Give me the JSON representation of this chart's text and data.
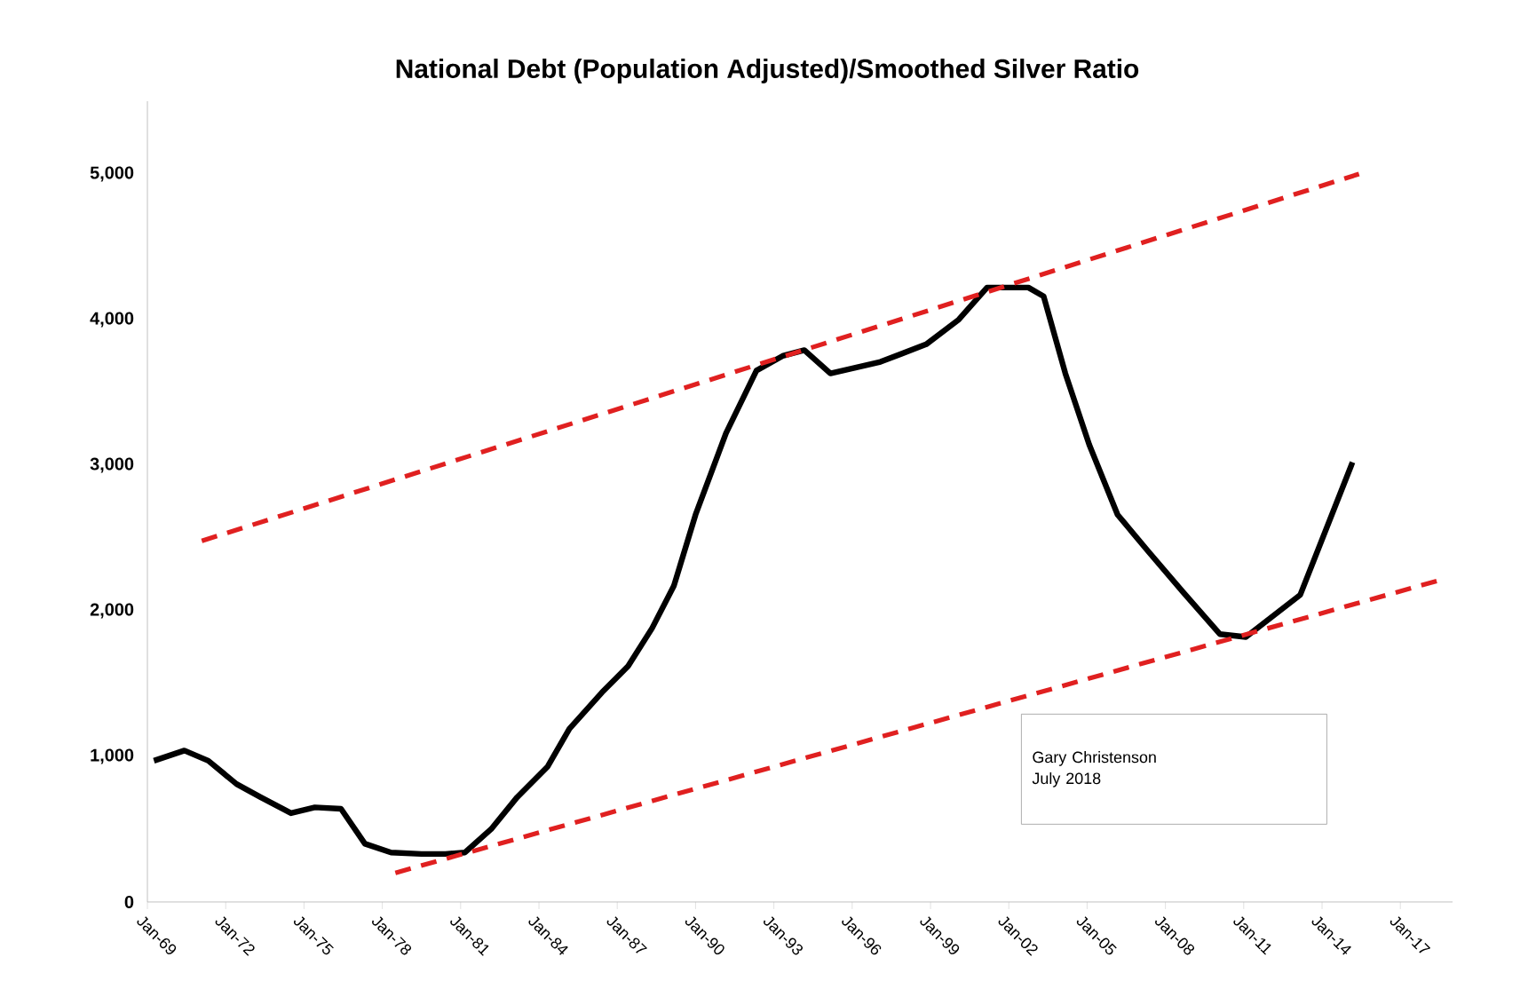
{
  "chart_data": {
    "type": "line",
    "title": "National Debt (Population Adjusted)/Smoothed Silver Ratio",
    "xlim": [
      "1969-01",
      "2019-01"
    ],
    "ylim": [
      0,
      5500
    ],
    "xticks": [
      {
        "value": "1969-01",
        "label": "Jan-69"
      },
      {
        "value": "1972-01",
        "label": "Jan-72"
      },
      {
        "value": "1975-01",
        "label": "Jan-75"
      },
      {
        "value": "1978-01",
        "label": "Jan-78"
      },
      {
        "value": "1981-01",
        "label": "Jan-81"
      },
      {
        "value": "1984-01",
        "label": "Jan-84"
      },
      {
        "value": "1987-01",
        "label": "Jan-87"
      },
      {
        "value": "1990-01",
        "label": "Jan-90"
      },
      {
        "value": "1993-01",
        "label": "Jan-93"
      },
      {
        "value": "1996-01",
        "label": "Jan-96"
      },
      {
        "value": "1999-01",
        "label": "Jan-99"
      },
      {
        "value": "2002-01",
        "label": "Jan-02"
      },
      {
        "value": "2005-01",
        "label": "Jan-05"
      },
      {
        "value": "2008-01",
        "label": "Jan-08"
      },
      {
        "value": "2011-01",
        "label": "Jan-11"
      },
      {
        "value": "2014-01",
        "label": "Jan-14"
      },
      {
        "value": "2017-01",
        "label": "Jan-17"
      }
    ],
    "yticks": [
      0,
      {
        "value": 1000,
        "label": "1,000"
      },
      {
        "value": 2000,
        "label": "2,000"
      },
      {
        "value": 3000,
        "label": "3,000"
      },
      {
        "value": 4000,
        "label": "4,000"
      },
      {
        "value": 5000,
        "label": "5,000"
      }
    ],
    "annotations": [
      "Gary Christenson",
      "July 2018"
    ],
    "marker": "none",
    "series": [
      {
        "color": "#000000",
        "line_style": "solid",
        "x": [
          "1969-04",
          "1970-06",
          "1971-05",
          "1972-06",
          "1973-05",
          "1974-07",
          "1975-06",
          "1976-06",
          "1977-05",
          "1978-05",
          "1979-07",
          "1980-06",
          "1981-03",
          "1982-03",
          "1983-03",
          "1984-05",
          "1985-03",
          "1986-06",
          "1987-06",
          "1988-05",
          "1989-03",
          "1990-01",
          "1991-03",
          "1992-05",
          "1993-05",
          "1994-03",
          "1995-03",
          "1997-02",
          "1998-11",
          "2000-02",
          "2001-03",
          "2002-10",
          "2003-05",
          "2004-03",
          "2005-02",
          "2006-03",
          "2007-05",
          "2008-09",
          "2010-02",
          "2011-02",
          "2013-03",
          "2015-03"
        ],
        "values": [
          970,
          1040,
          970,
          810,
          720,
          610,
          650,
          640,
          400,
          340,
          330,
          330,
          340,
          500,
          720,
          930,
          1190,
          1440,
          1620,
          1880,
          2170,
          2660,
          3220,
          3650,
          3750,
          3790,
          3630,
          3710,
          3830,
          4000,
          4220,
          4220,
          4160,
          3630,
          3140,
          2660,
          2410,
          2130,
          1840,
          1820,
          2110,
          3020
        ]
      },
      {
        "color": "#e02020",
        "line_style": "dashed",
        "x": [
          "1971-02",
          "2015-06"
        ],
        "values": [
          2480,
          5000
        ]
      },
      {
        "color": "#e02020",
        "line_style": "dashed",
        "x": [
          "1978-07",
          "2018-07"
        ],
        "values": [
          200,
          2210
        ]
      }
    ]
  }
}
